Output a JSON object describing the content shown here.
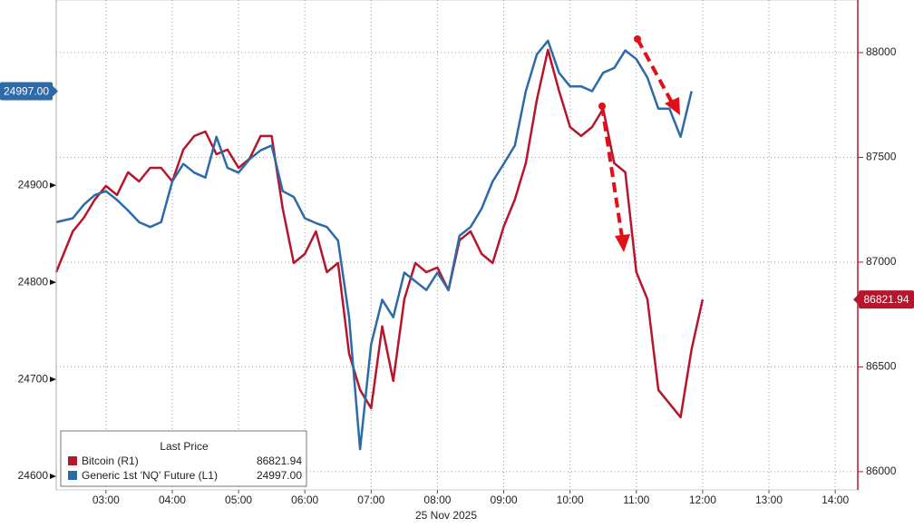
{
  "chart_data": {
    "type": "line",
    "x_label": "25 Nov 2025",
    "legend_title": "Last Price",
    "x": [
      2.25,
      2.5,
      2.667,
      2.833,
      3,
      3.167,
      3.333,
      3.5,
      3.667,
      3.833,
      4,
      4.167,
      4.333,
      4.5,
      4.667,
      4.833,
      5,
      5.167,
      5.333,
      5.5,
      5.667,
      5.833,
      6,
      6.167,
      6.333,
      6.5,
      6.667,
      6.833,
      7,
      7.167,
      7.333,
      7.5,
      7.667,
      7.833,
      8,
      8.167,
      8.333,
      8.5,
      8.667,
      8.833,
      9,
      9.167,
      9.333,
      9.5,
      9.667,
      9.833,
      10,
      10.167,
      10.333,
      10.5,
      10.667,
      10.833,
      11,
      11.167,
      11.333,
      11.5,
      11.667,
      11.833,
      12
    ],
    "series": [
      {
        "name": "Bitcoin  (R1)",
        "color": "#b5162b",
        "axis": "y2",
        "last_value_label": "86821.94",
        "values": [
          86952,
          87147,
          87212,
          87299,
          87364,
          87320,
          87429,
          87385,
          87450,
          87450,
          87385,
          87537,
          87602,
          87623,
          87515,
          87537,
          87450,
          87494,
          87602,
          87602,
          87255,
          86996,
          87039,
          87147,
          86952,
          86996,
          86563,
          86390,
          86303,
          86693,
          86433,
          86823,
          86996,
          86952,
          86974,
          86866,
          87104,
          87147,
          87039,
          86996,
          87169,
          87299,
          87472,
          87775,
          88013,
          87818,
          87645,
          87602,
          87645,
          87732,
          87472,
          87429,
          86952,
          86823,
          86390,
          86325,
          86260,
          86584,
          86821.94
        ]
      },
      {
        "name": "Generic 1st 'NQ' Future  (L1)",
        "color": "#2c6aa8",
        "axis": "y",
        "last_value_label": "24997.00",
        "values": [
          24862,
          24866,
          24880,
          24890,
          24894,
          24885,
          24874,
          24862,
          24857,
          24862,
          24904,
          24922,
          24913,
          24908,
          24950,
          24918,
          24913,
          24927,
          24936,
          24941,
          24894,
          24888,
          24866,
          24861,
          24857,
          24843,
          24764,
          24628,
          24736,
          24782,
          24764,
          24810,
          24801,
          24792,
          24810,
          24792,
          24848,
          24857,
          24876,
          24904,
          24922,
          24941,
          24997,
          25035,
          25049,
          25016,
          25002,
          25002,
          24997,
          25016,
          25021,
          25039,
          25030,
          25011,
          24979,
          24979,
          24950,
          24997,
          null
        ]
      }
    ],
    "xlim": [
      2.25,
      14.34
    ],
    "xticks": [
      {
        "value": 3,
        "label": "03:00"
      },
      {
        "value": 4,
        "label": "04:00"
      },
      {
        "value": 5,
        "label": "05:00"
      },
      {
        "value": 6,
        "label": "06:00"
      },
      {
        "value": 7,
        "label": "07:00"
      },
      {
        "value": 8,
        "label": "08:00"
      },
      {
        "value": 9,
        "label": "09:00"
      },
      {
        "value": 10,
        "label": "10:00"
      },
      {
        "value": 11,
        "label": "11:00"
      },
      {
        "value": 12,
        "label": "12:00"
      },
      {
        "value": 13,
        "label": "13:00"
      },
      {
        "value": 14,
        "label": "14:00"
      }
    ],
    "ylim": [
      24586,
      25091
    ],
    "yticks": [
      24600,
      24700,
      24800,
      24900
    ],
    "y2lim": [
      85913,
      88251
    ],
    "y2ticks": [
      86000,
      86500,
      87000,
      87500,
      88000
    ],
    "grid": true
  }
}
